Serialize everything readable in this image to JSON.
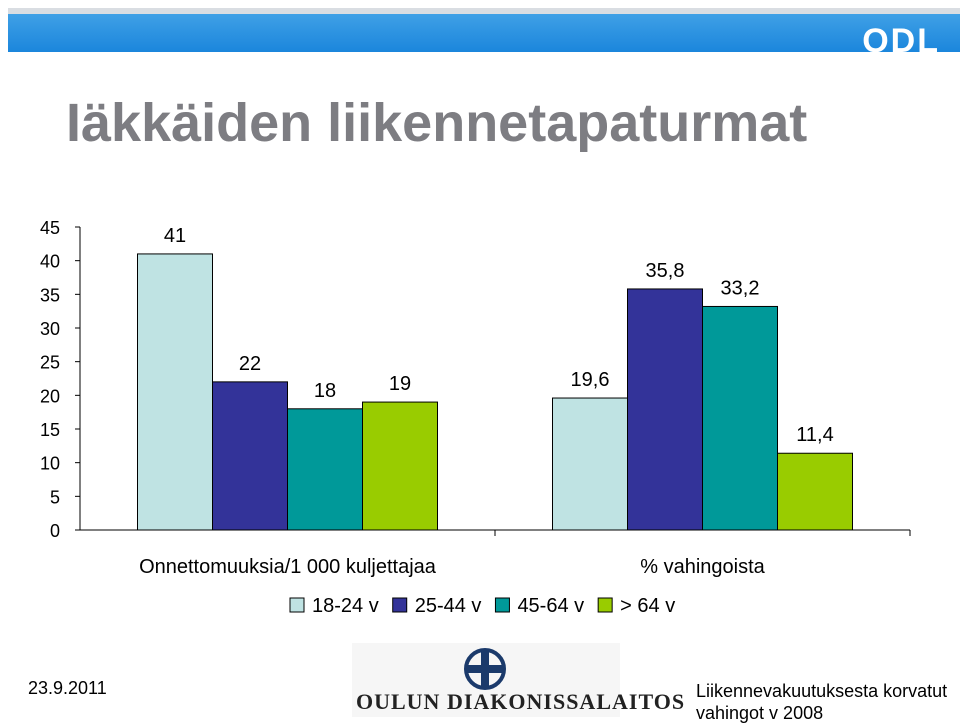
{
  "header": {
    "brand": "ODL"
  },
  "slide": {
    "title": "Iäkkäiden liikennetapaturmat"
  },
  "chart_data": {
    "type": "bar",
    "categories": [
      "Onnettomuuksia/1 000 kuljettajaa",
      "% vahingoista"
    ],
    "series": [
      {
        "name": "18-24 v",
        "values": [
          41,
          19.6
        ],
        "labels": [
          "41",
          "19,6"
        ],
        "color": "#bfe3e3"
      },
      {
        "name": "25-44 v",
        "values": [
          22,
          35.8
        ],
        "labels": [
          "22",
          "35,8"
        ],
        "color": "#333399"
      },
      {
        "name": "45-64 v",
        "values": [
          18,
          33.2
        ],
        "labels": [
          "18",
          "33,2"
        ],
        "color": "#009999"
      },
      {
        "name": "> 64 v",
        "values": [
          19,
          11.4
        ],
        "labels": [
          "19",
          "11,4"
        ],
        "color": "#99cc00"
      }
    ],
    "ylim": [
      0,
      45
    ],
    "yticks": [
      0,
      5,
      10,
      15,
      20,
      25,
      30,
      35,
      40,
      45
    ],
    "grid": false,
    "legend": "bottom"
  },
  "footer": {
    "date": "23.9.2011",
    "logo_text": "OULUN DIAKONISSALAITOS",
    "source_line1": "Liikennevakuutuksesta korvatut",
    "source_line2": "vahingot v 2008"
  }
}
